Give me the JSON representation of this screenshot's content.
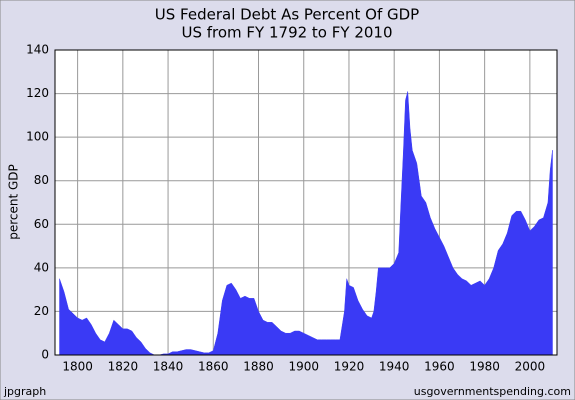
{
  "chart_data": {
    "type": "area",
    "title": "US Federal Debt As Percent Of GDP",
    "subtitle": "US from FY 1792 to FY 2010",
    "y_label": "percent GDP",
    "footer_left": "jpgraph",
    "footer_right": "usgovernmentspending.com",
    "color": "#3a3af5",
    "grid": true,
    "x": [
      1792,
      1794,
      1796,
      1798,
      1800,
      1802,
      1804,
      1806,
      1808,
      1810,
      1812,
      1814,
      1816,
      1818,
      1820,
      1822,
      1824,
      1826,
      1828,
      1830,
      1832,
      1834,
      1836,
      1838,
      1840,
      1842,
      1844,
      1846,
      1848,
      1850,
      1852,
      1854,
      1856,
      1858,
      1860,
      1862,
      1864,
      1866,
      1868,
      1870,
      1872,
      1874,
      1876,
      1878,
      1880,
      1882,
      1884,
      1886,
      1888,
      1890,
      1892,
      1894,
      1896,
      1898,
      1900,
      1902,
      1904,
      1906,
      1908,
      1910,
      1912,
      1914,
      1916,
      1918,
      1919,
      1920,
      1922,
      1924,
      1926,
      1928,
      1930,
      1931,
      1932,
      1933,
      1936,
      1938,
      1940,
      1942,
      1943,
      1944,
      1945,
      1946,
      1947,
      1948,
      1950,
      1952,
      1954,
      1956,
      1958,
      1960,
      1962,
      1964,
      1966,
      1968,
      1970,
      1972,
      1974,
      1976,
      1978,
      1980,
      1982,
      1984,
      1986,
      1988,
      1990,
      1992,
      1994,
      1996,
      1998,
      2000,
      2002,
      2004,
      2006,
      2008,
      2009,
      2010
    ],
    "values": [
      35,
      29,
      21,
      19,
      17,
      16,
      17,
      14,
      10,
      7,
      6,
      10,
      16,
      14,
      12,
      12,
      11,
      8,
      6,
      3,
      1,
      0,
      0,
      0.5,
      0.5,
      1.5,
      1.5,
      2,
      2.5,
      2.5,
      2,
      1.5,
      1,
      1,
      2,
      10,
      25,
      32,
      33,
      30,
      26,
      27,
      26,
      26,
      20,
      16,
      15,
      15,
      13,
      11,
      10,
      10,
      11,
      11,
      10,
      9,
      8,
      7,
      7,
      7,
      7,
      7,
      7,
      20,
      35,
      32,
      31,
      25,
      21,
      18,
      17,
      20,
      29,
      40,
      40,
      40,
      42,
      47,
      70,
      92,
      117,
      121,
      104,
      94,
      88,
      73,
      70,
      63,
      58,
      54,
      50,
      45,
      40,
      37,
      35,
      34,
      32,
      33,
      34,
      32,
      35,
      40,
      48,
      51,
      56,
      64,
      66,
      66,
      62,
      57,
      59,
      62,
      63,
      70,
      85,
      94
    ],
    "xlim": [
      1790,
      2012
    ],
    "xticks": [
      1800,
      1820,
      1840,
      1860,
      1880,
      1900,
      1920,
      1940,
      1960,
      1980,
      2000
    ],
    "ylim": [
      0,
      140
    ],
    "yticks": [
      0,
      20,
      40,
      60,
      80,
      100,
      120,
      140
    ]
  }
}
